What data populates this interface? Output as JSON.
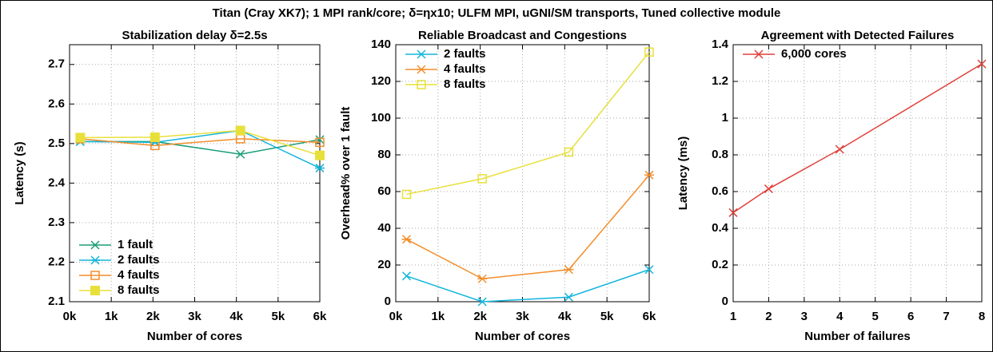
{
  "title": "Titan (Cray XK7); 1 MPI rank/core; δ=ηx10; ULFM MPI, uGNI/SM transports, Tuned collective module",
  "chart_data": [
    {
      "type": "line",
      "title": "Stabilization delay δ=2.5s",
      "xlabel": "Number of cores",
      "ylabel": "Latency (s)",
      "x": [
        256,
        2048,
        4096,
        6000
      ],
      "xlim": [
        0,
        6000
      ],
      "xticks": [
        {
          "value": 0,
          "label": "0k"
        },
        {
          "value": 1000,
          "label": "1k"
        },
        {
          "value": 2000,
          "label": "2k"
        },
        {
          "value": 3000,
          "label": "3k"
        },
        {
          "value": 4000,
          "label": "4k"
        },
        {
          "value": 5000,
          "label": "5k"
        },
        {
          "value": 6000,
          "label": "6k"
        }
      ],
      "ylim": [
        2.1,
        2.75
      ],
      "yticks": [
        2.1,
        2.2,
        2.3,
        2.4,
        2.5,
        2.6,
        2.7
      ],
      "grid": true,
      "legend": "bottom-left",
      "series": [
        {
          "name": "1 fault",
          "color": "#1a9e77",
          "marker": "x",
          "values": [
            2.505,
            2.505,
            2.473,
            2.51
          ]
        },
        {
          "name": "2 faults",
          "color": "#12b5dc",
          "marker": "asterisk",
          "values": [
            2.505,
            2.503,
            2.533,
            2.438
          ]
        },
        {
          "name": "4 faults",
          "color": "#f28e2b",
          "marker": "open-square",
          "values": [
            2.512,
            2.495,
            2.512,
            2.503
          ]
        },
        {
          "name": "8 faults",
          "color": "#e8e03a",
          "marker": "filled-square",
          "values": [
            2.515,
            2.516,
            2.533,
            2.47
          ]
        }
      ]
    },
    {
      "type": "line",
      "title": "Reliable Broadcast and Congestions",
      "xlabel": "Number of cores",
      "ylabel": "Overhead% over 1 fault",
      "x": [
        256,
        2048,
        4096,
        6000
      ],
      "xlim": [
        0,
        6000
      ],
      "xticks": [
        {
          "value": 0,
          "label": "0k"
        },
        {
          "value": 1000,
          "label": "1k"
        },
        {
          "value": 2000,
          "label": "2k"
        },
        {
          "value": 3000,
          "label": "3k"
        },
        {
          "value": 4000,
          "label": "4k"
        },
        {
          "value": 5000,
          "label": "5k"
        },
        {
          "value": 6000,
          "label": "6k"
        }
      ],
      "ylim": [
        0,
        140
      ],
      "yticks": [
        0,
        20,
        40,
        60,
        80,
        100,
        120,
        140
      ],
      "grid": true,
      "legend": "top-left",
      "series": [
        {
          "name": "2 faults",
          "color": "#12b5dc",
          "marker": "x",
          "values": [
            14,
            0,
            2.5,
            17.5
          ]
        },
        {
          "name": "4 faults",
          "color": "#f28e2b",
          "marker": "asterisk",
          "values": [
            34,
            12.5,
            17.5,
            69
          ]
        },
        {
          "name": "8 faults",
          "color": "#e8e03a",
          "marker": "open-square",
          "values": [
            58.5,
            67,
            81.5,
            136
          ]
        }
      ]
    },
    {
      "type": "line",
      "title": "Agreement with Detected Failures",
      "xlabel": "Number of failures",
      "ylabel": "Latency (ms)",
      "x": [
        1,
        2,
        4,
        8
      ],
      "xlim": [
        1,
        8
      ],
      "xticks": [
        1,
        2,
        3,
        4,
        5,
        6,
        7,
        8
      ],
      "ylim": [
        0,
        1.4
      ],
      "yticks": [
        0,
        0.2,
        0.4,
        0.6,
        0.8,
        1,
        1.2,
        1.4
      ],
      "grid": true,
      "legend": "top-left",
      "series": [
        {
          "name": "6,000 cores",
          "color": "#e0403a",
          "marker": "x",
          "values": [
            0.485,
            0.615,
            0.83,
            1.295
          ]
        }
      ]
    }
  ]
}
